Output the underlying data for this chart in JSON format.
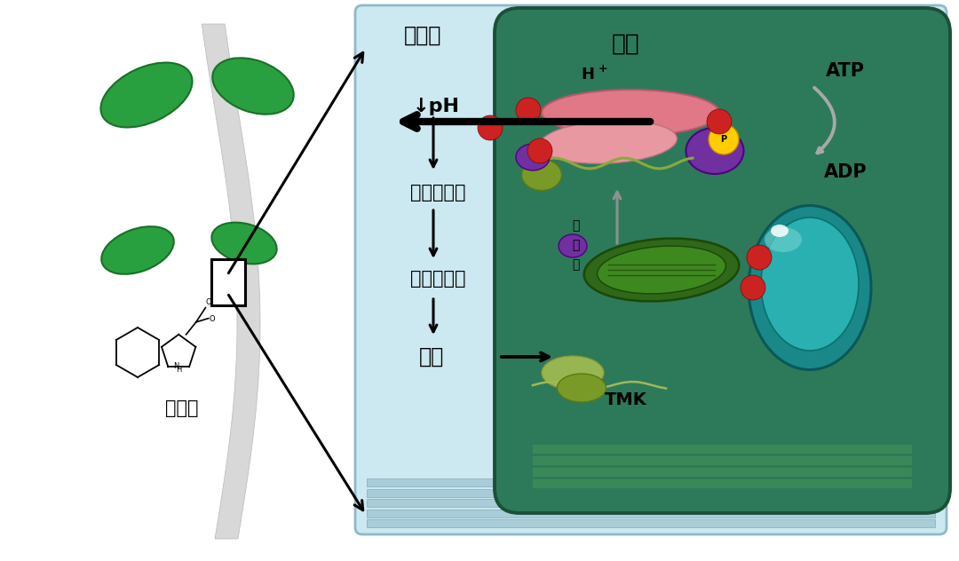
{
  "bg_color": "#ffffff",
  "cell_bg": "#2d7a5a",
  "apoplast_bg": "#cce8f0",
  "apoplast_border": "#90b8c8",
  "title_apoplast": "胞质体",
  "title_cytoplasm": "胞质",
  "label_pH": "↓pH",
  "label_enzyme": "蛋白酶激活",
  "label_wall": "细胞壁修饰",
  "label_elongation": "伸长",
  "label_auxin": "生长素",
  "label_ATP": "ATP",
  "label_ADP": "ADP",
  "label_TMK": "TMK",
  "text_color": "#000000",
  "h_pump_color": "#e07080",
  "red_dot_color": "#cc2222",
  "purple_shape_color": "#7030a0",
  "yellow_P_color": "#ffcc00",
  "nucleus_outer": "#1a8888",
  "nucleus_inner": "#2ab0b0",
  "chloroplast_color": "#3a7020"
}
